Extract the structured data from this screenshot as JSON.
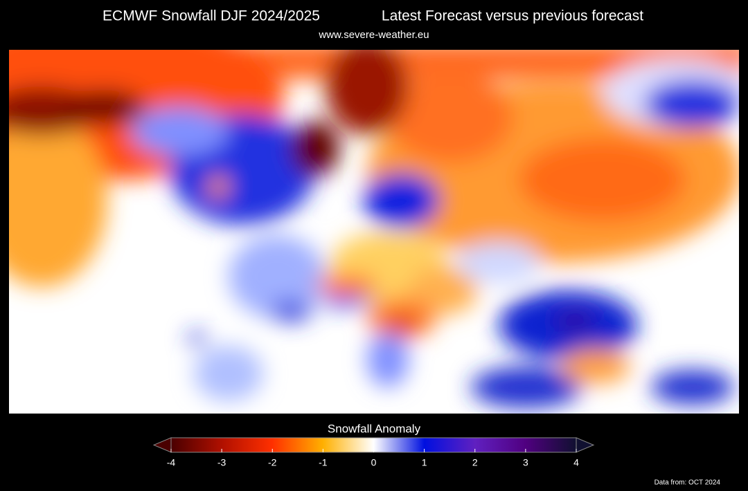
{
  "header": {
    "title": "ECMWF Snowfall DJF 2024/2025",
    "subtitle": "Latest Forecast versus previous forecast",
    "source": "www.severe-weather.eu"
  },
  "colorbar": {
    "label": "Snowfall Anomaly",
    "lim": [
      -4,
      4
    ],
    "ticks": [
      -4,
      -3,
      -2,
      -1,
      0,
      1,
      2,
      3,
      4
    ],
    "colormap": [
      "#4a0000",
      "#b01000",
      "#ff3000",
      "#ffb000",
      "#ffffff",
      "#0010e0",
      "#6020c0",
      "#500080",
      "#101030"
    ]
  },
  "footer": {
    "note": "Data from: OCT 2024"
  }
}
